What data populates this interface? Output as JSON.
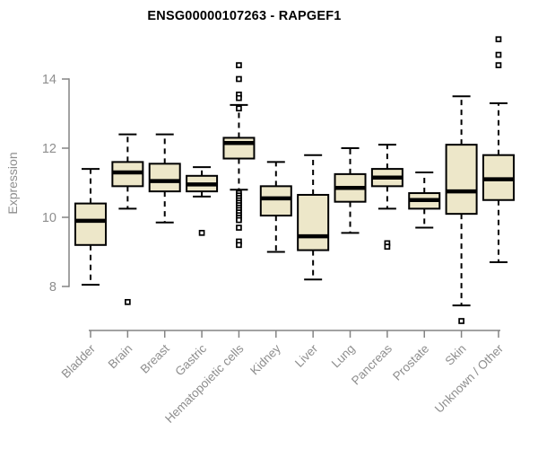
{
  "chart_data": {
    "type": "boxplot",
    "title": "ENSG00000107263 - RAPGEF1",
    "xlabel": "",
    "ylabel": "Expression",
    "yticks": [
      8,
      10,
      12,
      14
    ],
    "ylim": [
      6.7,
      15.5
    ],
    "grid": false,
    "legend": "none",
    "categories": [
      "Bladder",
      "Brain",
      "Breast",
      "Gastric",
      "Hematopoietic cells",
      "Kidney",
      "Liver",
      "Lung",
      "Pancreas",
      "Prostate",
      "Skin",
      "Unknown / Other"
    ],
    "series": [
      {
        "category": "Bladder",
        "whisker_low": 8.05,
        "q1": 9.2,
        "median": 9.9,
        "q3": 10.4,
        "whisker_high": 11.4,
        "outliers": []
      },
      {
        "category": "Brain",
        "whisker_low": 10.25,
        "q1": 10.9,
        "median": 11.3,
        "q3": 11.6,
        "whisker_high": 12.4,
        "outliers": [
          7.55
        ]
      },
      {
        "category": "Breast",
        "whisker_low": 9.85,
        "q1": 10.75,
        "median": 11.05,
        "q3": 11.55,
        "whisker_high": 12.4,
        "outliers": []
      },
      {
        "category": "Gastric",
        "whisker_low": 10.6,
        "q1": 10.75,
        "median": 10.95,
        "q3": 11.2,
        "whisker_high": 11.45,
        "outliers": [
          9.55
        ]
      },
      {
        "category": "Hematopoietic cells",
        "whisker_low": 10.8,
        "q1": 11.7,
        "median": 12.15,
        "q3": 12.3,
        "whisker_high": 13.25,
        "outliers": [
          14.4,
          14.0,
          13.55,
          13.45,
          13.15,
          10.7,
          10.63,
          10.56,
          10.49,
          10.42,
          10.35,
          10.28,
          10.21,
          10.14,
          10.06,
          9.99,
          9.92,
          9.7,
          9.3,
          9.2
        ]
      },
      {
        "category": "Kidney",
        "whisker_low": 9.0,
        "q1": 10.05,
        "median": 10.55,
        "q3": 10.9,
        "whisker_high": 11.6,
        "outliers": []
      },
      {
        "category": "Liver",
        "whisker_low": 8.2,
        "q1": 9.05,
        "median": 9.45,
        "q3": 10.65,
        "whisker_high": 11.8,
        "outliers": []
      },
      {
        "category": "Lung",
        "whisker_low": 9.55,
        "q1": 10.45,
        "median": 10.85,
        "q3": 11.25,
        "whisker_high": 12.0,
        "outliers": []
      },
      {
        "category": "Pancreas",
        "whisker_low": 10.25,
        "q1": 10.9,
        "median": 11.15,
        "q3": 11.4,
        "whisker_high": 12.1,
        "outliers": [
          9.25,
          9.15
        ]
      },
      {
        "category": "Prostate",
        "whisker_low": 9.7,
        "q1": 10.25,
        "median": 10.5,
        "q3": 10.7,
        "whisker_high": 11.3,
        "outliers": []
      },
      {
        "category": "Skin",
        "whisker_low": 7.45,
        "q1": 10.1,
        "median": 10.75,
        "q3": 12.1,
        "whisker_high": 13.5,
        "outliers": [
          7.0
        ]
      },
      {
        "category": "Unknown / Other",
        "whisker_low": 8.7,
        "q1": 10.5,
        "median": 11.1,
        "q3": 11.8,
        "whisker_high": 13.3,
        "outliers": [
          15.15,
          14.7,
          14.4
        ]
      }
    ],
    "colors": {
      "box_fill": "#EDE7C9",
      "box_stroke": "#000000",
      "median": "#000000",
      "whisker": "#000000",
      "outlier_stroke": "#000000",
      "axis": "#848484",
      "tick_label": "#8E8E8E",
      "title": "#000000",
      "background": "#FFFFFF"
    }
  }
}
